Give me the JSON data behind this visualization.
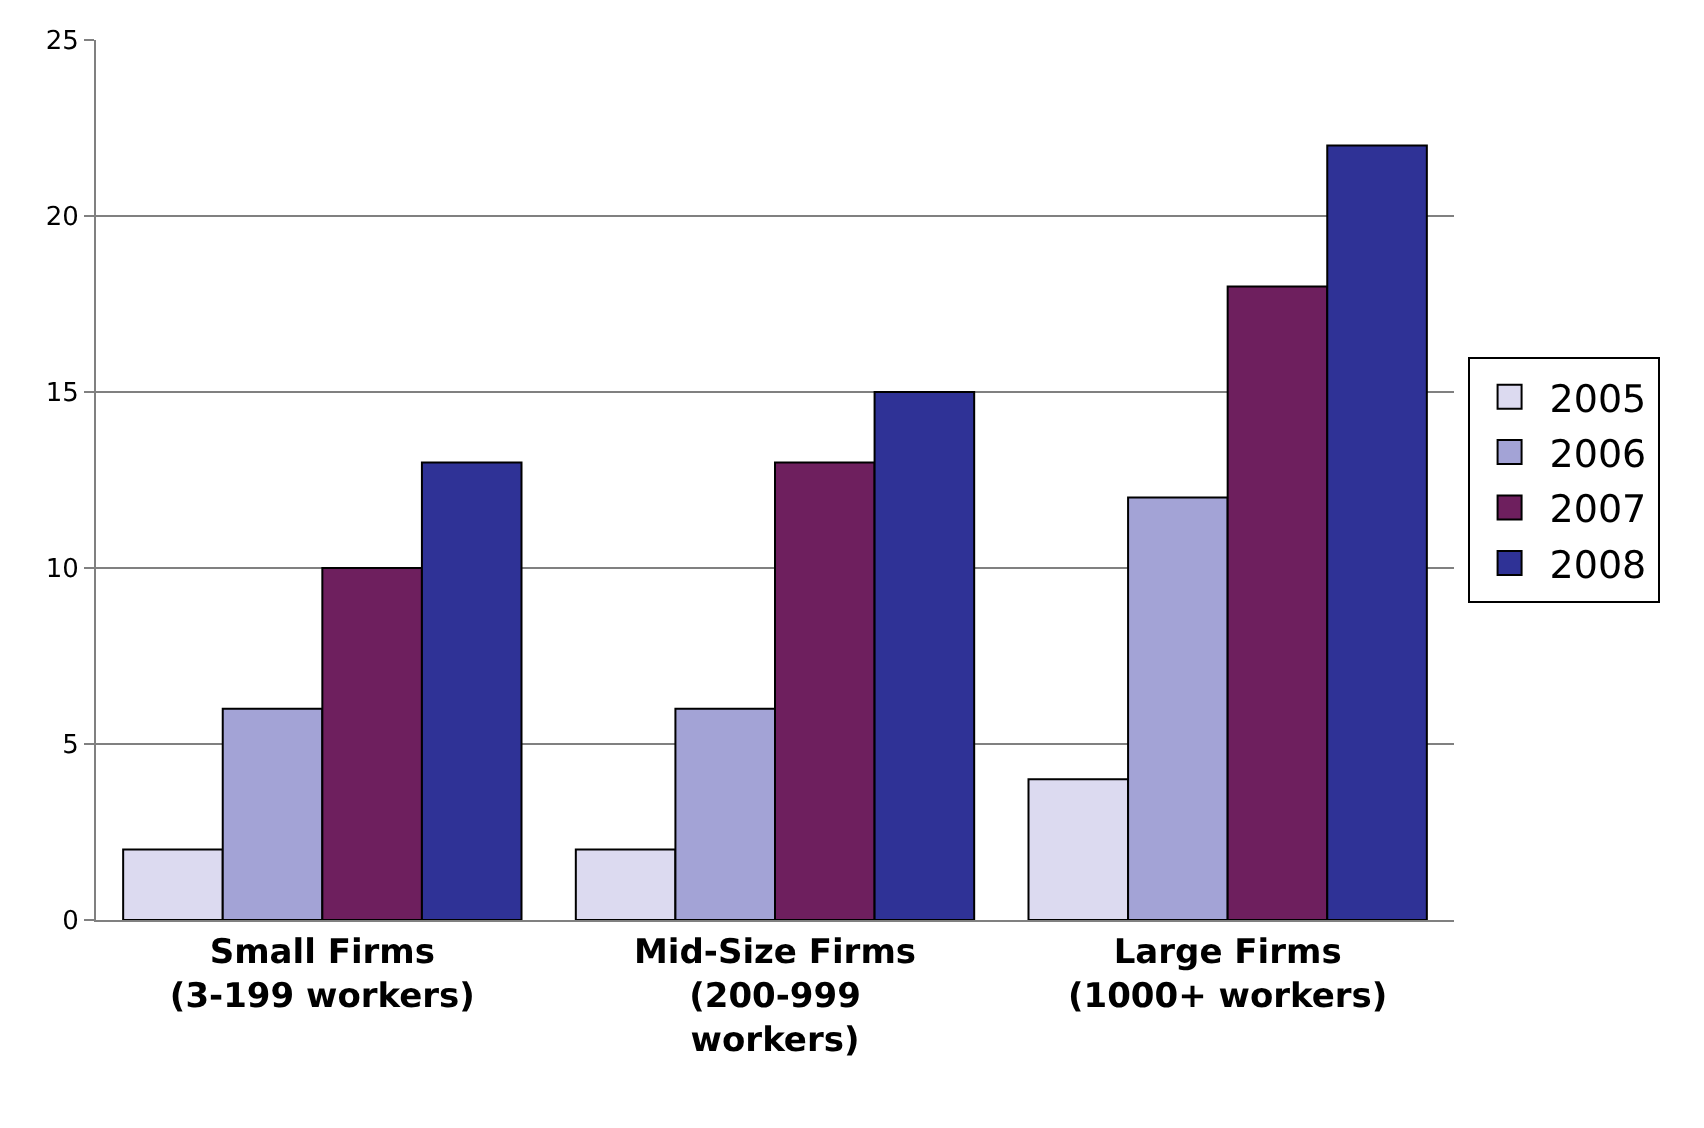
{
  "chart_data": {
    "type": "bar",
    "categories": [
      "Small Firms\n(3-199 workers)",
      "Mid-Size Firms\n(200-999\nworkers)",
      "Large Firms\n(1000+ workers)"
    ],
    "series": [
      {
        "name": "2005",
        "color": "#dcdaf0",
        "values": [
          2,
          2,
          4
        ]
      },
      {
        "name": "2006",
        "color": "#a3a3d6",
        "values": [
          6,
          6,
          12
        ]
      },
      {
        "name": "2007",
        "color": "#6e1f5e",
        "values": [
          10,
          13,
          18
        ]
      },
      {
        "name": "2008",
        "color": "#2f3296",
        "values": [
          13,
          15,
          22
        ]
      }
    ],
    "ylim": [
      0,
      25
    ],
    "yticks": [
      0,
      5,
      10,
      15,
      20,
      25
    ],
    "grid": "y",
    "legend": "right"
  }
}
